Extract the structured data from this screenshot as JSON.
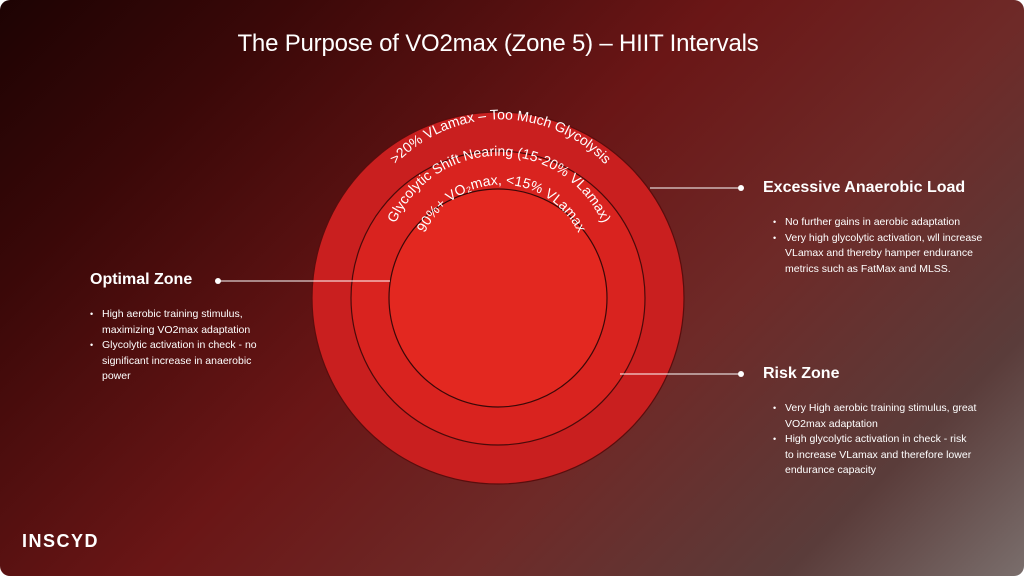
{
  "title": "The Purpose of VO2max (Zone 5) – HIIT Intervals",
  "rings": [
    {
      "label": ">20% VLamax – Too Much Glycolysis",
      "color": "#c91f1f"
    },
    {
      "label": "Glycolytic Shift Nearing (15-20% VLamax)",
      "color": "#d9231f"
    },
    {
      "label": "90%+ VO₂max, <15% VLamax",
      "color": "#e32820"
    }
  ],
  "panels": {
    "optimal": {
      "title": "Optimal Zone",
      "bullets": [
        "High aerobic training stimulus, maximizing VO2max adaptation",
        "Glycolytic activation in check - no significant increase in anaerobic power"
      ]
    },
    "excessive": {
      "title": "Excessive Anaerobic Load",
      "bullets": [
        "No further gains in aerobic adaptation",
        "Very high glycolytic activation, wll increase VLamax and thereby hamper endurance metrics such as FatMax and MLSS."
      ]
    },
    "risk": {
      "title": "Risk Zone",
      "bullets": [
        "Very High aerobic training stimulus, great VO2max adaptation",
        "High glycolytic activation in check - risk to increase VLamax and therefore lower endurance capacity"
      ]
    }
  },
  "logo": "INSCYD",
  "colors": {
    "connector": "#ffffff",
    "ring_stroke": "#5a0d0d"
  }
}
